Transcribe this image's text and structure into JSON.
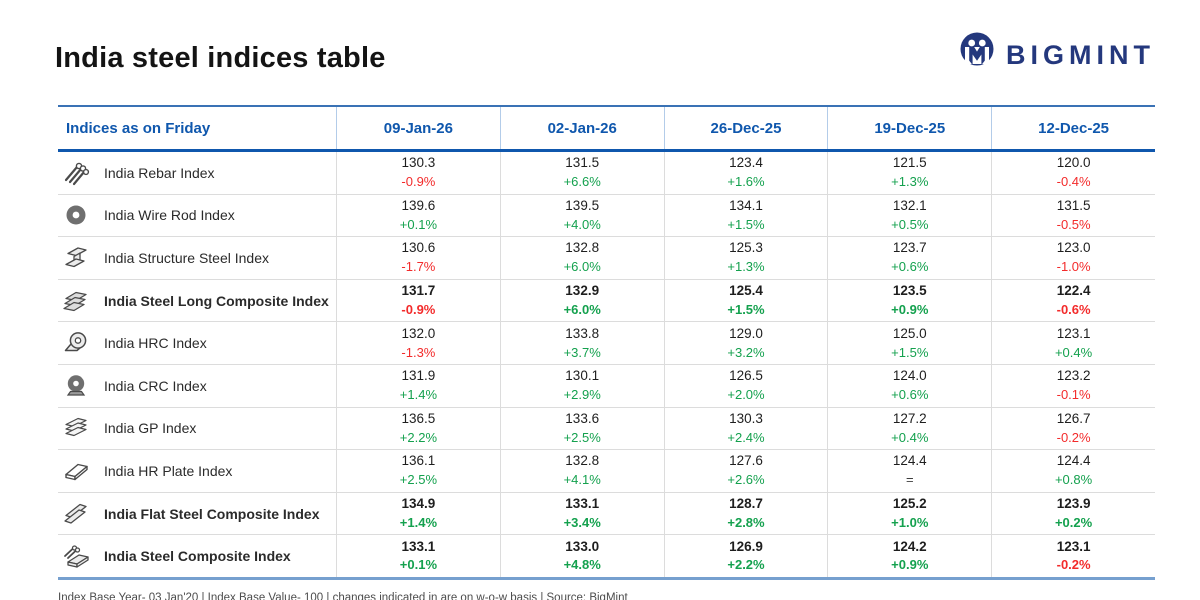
{
  "header": {
    "title": "India steel indices table",
    "logo_text": "BIGMINT"
  },
  "colors": {
    "header_blue": "#0f57ad",
    "logo_navy": "#24387d",
    "positive_green": "#14a14e",
    "negative_red": "#f32b2b",
    "neutral_dark": "#3c3c3c",
    "table_bottom_bar": "#76a0cf"
  },
  "chart_data": {
    "type": "table",
    "title": "India steel indices table",
    "label_column_header": "Indices as on Friday",
    "date_columns": [
      "09-Jan-26",
      "02-Jan-26",
      "26-Dec-25",
      "19-Dec-25",
      "12-Dec-25"
    ],
    "rows": [
      {
        "label": "India Rebar Index",
        "icon": "rebar-icon",
        "bold": false,
        "values": [
          "130.3",
          "131.5",
          "123.4",
          "121.5",
          "120.0"
        ],
        "changes": [
          "-0.9%",
          "+6.6%",
          "+1.6%",
          "+1.3%",
          "-0.4%"
        ]
      },
      {
        "label": "India Wire Rod Index",
        "icon": "wire-rod-icon",
        "bold": false,
        "values": [
          "139.6",
          "139.5",
          "134.1",
          "132.1",
          "131.5"
        ],
        "changes": [
          "+0.1%",
          "+4.0%",
          "+1.5%",
          "+0.5%",
          "-0.5%"
        ]
      },
      {
        "label": "India Structure Steel Index",
        "icon": "structure-steel-icon",
        "bold": false,
        "values": [
          "130.6",
          "132.8",
          "125.3",
          "123.7",
          "123.0"
        ],
        "changes": [
          "-1.7%",
          "+6.0%",
          "+1.3%",
          "+0.6%",
          "-1.0%"
        ]
      },
      {
        "label": "India Steel Long Composite Index",
        "icon": "long-composite-icon",
        "bold": true,
        "values": [
          "131.7",
          "132.9",
          "125.4",
          "123.5",
          "122.4"
        ],
        "changes": [
          "-0.9%",
          "+6.0%",
          "+1.5%",
          "+0.9%",
          "-0.6%"
        ]
      },
      {
        "label": "India HRC Index",
        "icon": "hrc-coil-icon",
        "bold": false,
        "values": [
          "132.0",
          "133.8",
          "129.0",
          "125.0",
          "123.1"
        ],
        "changes": [
          "-1.3%",
          "+3.7%",
          "+3.2%",
          "+1.5%",
          "+0.4%"
        ]
      },
      {
        "label": "India CRC Index",
        "icon": "crc-coil-icon",
        "bold": false,
        "values": [
          "131.9",
          "130.1",
          "126.5",
          "124.0",
          "123.2"
        ],
        "changes": [
          "+1.4%",
          "+2.9%",
          "+2.0%",
          "+0.6%",
          "-0.1%"
        ]
      },
      {
        "label": "India GP Index",
        "icon": "gp-sheets-icon",
        "bold": false,
        "values": [
          "136.5",
          "133.6",
          "130.3",
          "127.2",
          "126.7"
        ],
        "changes": [
          "+2.2%",
          "+2.5%",
          "+2.4%",
          "+0.4%",
          "-0.2%"
        ]
      },
      {
        "label": "India HR Plate Index",
        "icon": "hr-plate-icon",
        "bold": false,
        "values": [
          "136.1",
          "132.8",
          "127.6",
          "124.4",
          "124.4"
        ],
        "changes": [
          "+2.5%",
          "+4.1%",
          "+2.6%",
          "=",
          "+0.8%"
        ]
      },
      {
        "label": "India Flat Steel Composite Index",
        "icon": "flat-composite-icon",
        "bold": true,
        "values": [
          "134.9",
          "133.1",
          "128.7",
          "125.2",
          "123.9"
        ],
        "changes": [
          "+1.4%",
          "+3.4%",
          "+2.8%",
          "+1.0%",
          "+0.2%"
        ]
      },
      {
        "label": "India Steel Composite Index",
        "icon": "steel-composite-icon",
        "bold": true,
        "values": [
          "133.1",
          "133.0",
          "126.9",
          "124.2",
          "123.1"
        ],
        "changes": [
          "+0.1%",
          "+4.8%",
          "+2.2%",
          "+0.9%",
          "-0.2%"
        ]
      }
    ],
    "footnote": "Index Base Year- 03 Jan'20 | Index Base Value- 100 | changes indicated in are on w-o-w basis | Source: BigMint"
  }
}
